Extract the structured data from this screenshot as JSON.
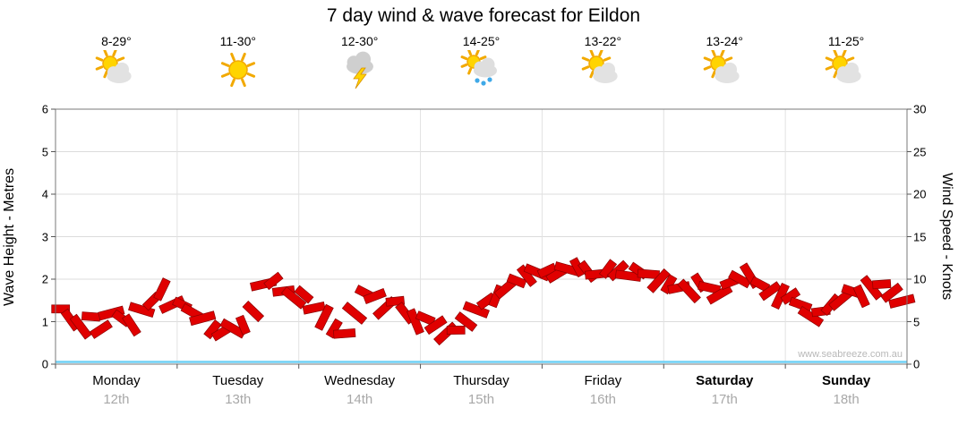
{
  "title": "7 day wind & wave forecast for Eildon",
  "watermark": "www.seabreeze.com.au",
  "forecast": {
    "days": [
      {
        "temp": "8-29°",
        "icon": "sun-cloud",
        "day": "Monday",
        "date": "12th",
        "weekend": false
      },
      {
        "temp": "11-30°",
        "icon": "sunny",
        "day": "Tuesday",
        "date": "13th",
        "weekend": false
      },
      {
        "temp": "12-30°",
        "icon": "storm",
        "day": "Wednesday",
        "date": "14th",
        "weekend": false
      },
      {
        "temp": "14-25°",
        "icon": "sun-rain",
        "day": "Thursday",
        "date": "15th",
        "weekend": false
      },
      {
        "temp": "13-22°",
        "icon": "sun-cloud",
        "day": "Friday",
        "date": "16th",
        "weekend": false
      },
      {
        "temp": "13-24°",
        "icon": "sun-cloud",
        "day": "Saturday",
        "date": "17th",
        "weekend": true
      },
      {
        "temp": "11-25°",
        "icon": "sun-cloud",
        "day": "Sunday",
        "date": "18th",
        "weekend": true
      }
    ]
  },
  "chart_data": {
    "type": "area",
    "title": "7 day wind & wave forecast for Eildon",
    "left_axis": {
      "label": "Wave Height - Metres",
      "min": 0,
      "max": 6,
      "ticks": [
        0,
        1,
        2,
        3,
        4,
        5,
        6
      ]
    },
    "right_axis": {
      "label": "Wind Speed - Knots",
      "min": 0,
      "max": 30,
      "ticks": [
        0,
        5,
        10,
        15,
        20,
        25,
        30
      ]
    },
    "categories": [
      "Monday 12th",
      "Tuesday 13th",
      "Wednesday 14th",
      "Thursday 15th",
      "Friday 16th",
      "Saturday 17th",
      "Sunday 18th"
    ],
    "points_per_day": 12,
    "grid": true,
    "baseline_color": "#6fd0f5",
    "series": [
      {
        "name": "Wind Speed",
        "unit": "knots",
        "color": "#e00000",
        "values": [
          6.5,
          5.2,
          4.4,
          5.6,
          4.1,
          6.0,
          5.4,
          4.6,
          6.4,
          7.4,
          8.8,
          7.0,
          7.0,
          6.1,
          5.4,
          4.1,
          3.8,
          4.2,
          4.6,
          6.2,
          9.4,
          9.8,
          8.6,
          7.8,
          8.2,
          6.6,
          5.5,
          4.2,
          3.6,
          6.0,
          8.4,
          8.0,
          6.6,
          7.4,
          6.0,
          5.0,
          5.4,
          4.6,
          3.6,
          4.0,
          5.0,
          6.4,
          7.4,
          8.0,
          9.0,
          9.8,
          10.4,
          10.8,
          11.0,
          10.6,
          11.2,
          11.4,
          10.9,
          10.6,
          11.2,
          11.0,
          10.4,
          11.0,
          10.6,
          9.8,
          9.4,
          9.0,
          8.6,
          9.6,
          9.0,
          8.2,
          9.6,
          10.0,
          10.4,
          9.4,
          8.6,
          8.0,
          8.0,
          7.0,
          5.6,
          6.2,
          7.0,
          7.6,
          8.6,
          8.0,
          9.0,
          9.4,
          8.4,
          7.4
        ]
      }
    ]
  }
}
